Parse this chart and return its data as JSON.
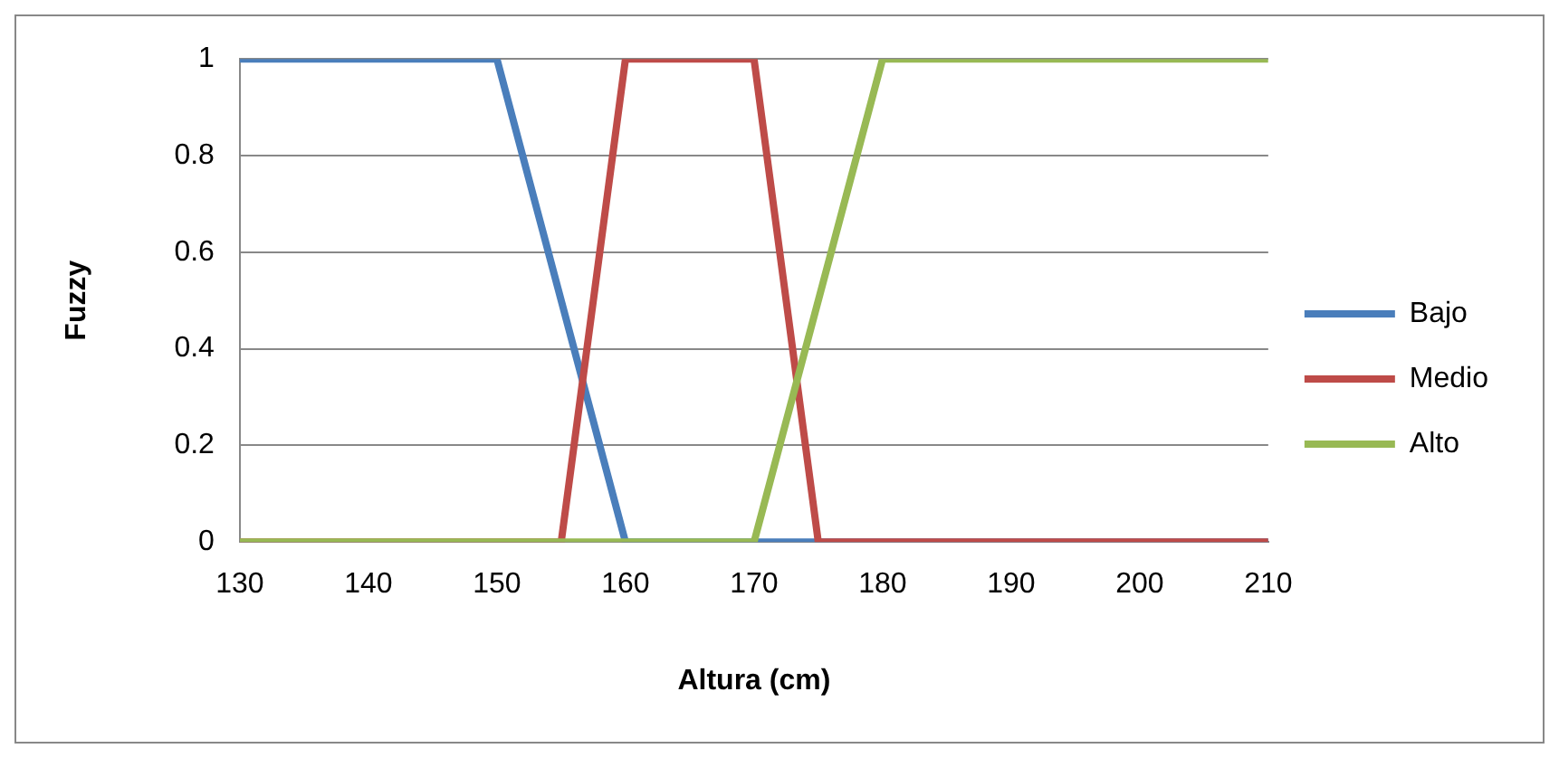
{
  "chart_data": {
    "type": "line",
    "xlabel": "Altura (cm)",
    "ylabel": "Fuzzy",
    "xlim": [
      130,
      210
    ],
    "xticks": [
      130,
      140,
      150,
      160,
      170,
      180,
      190,
      200,
      210
    ],
    "ylim": [
      0,
      1
    ],
    "yticks": [
      0,
      0.2,
      0.4,
      0.6,
      0.8,
      1
    ],
    "grid": "y",
    "legend": "right",
    "marker": "none",
    "line_style": "solid",
    "series": [
      {
        "name": "Bajo",
        "color": "#4a7ebb",
        "x": [
          130,
          150,
          160,
          210
        ],
        "values": [
          1,
          1,
          0,
          0
        ]
      },
      {
        "name": "Medio",
        "color": "#be4b48",
        "x": [
          130,
          155,
          160,
          170,
          175,
          210
        ],
        "values": [
          0,
          0,
          1,
          1,
          0,
          0
        ]
      },
      {
        "name": "Alto",
        "color": "#98b954",
        "x": [
          130,
          170,
          180,
          210
        ],
        "values": [
          0,
          0,
          1,
          1
        ]
      }
    ]
  }
}
